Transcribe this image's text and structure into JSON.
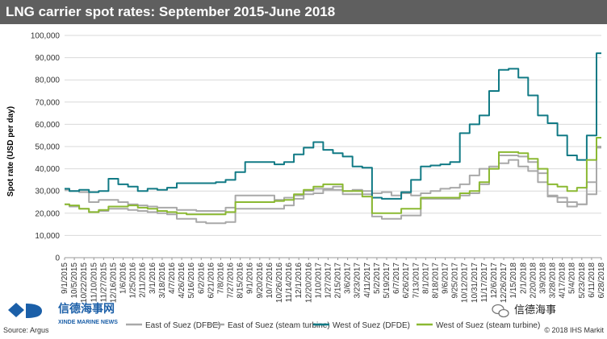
{
  "title": "LNG carrier spot rates: September 2015-June 2018",
  "colors": {
    "title_bg": "#5f5f5f",
    "east_dfde": "#a9a9a9",
    "east_steam": "#a9a9a9",
    "west_dfde": "#117a85",
    "west_steam": "#8bb932",
    "grid": "#d9d9d9"
  },
  "footer": {
    "source": "Source: Argus",
    "copyright": "© 2018 IHS Markit"
  },
  "watermark": {
    "chinese_name": "信德海事网",
    "english_name": "XINDE MARINE NEWS",
    "logo_text": "XD",
    "wechat_label": "信德海事",
    "wechat_icon": "wechat-icon"
  },
  "legend": {
    "east_dfde": "East of Suez (DFDE)",
    "east_steam": "East of Suez (steam turbine)",
    "west_dfde": "West of Suez (DFDE)",
    "west_steam": "West of Suez (steam turbine)"
  },
  "chart_data": {
    "type": "line",
    "title": "LNG carrier spot rates: September 2015-June 2018",
    "ylabel": "Spot rate (USD per day)",
    "xlabel": "",
    "ylim": [
      0,
      100000
    ],
    "yticks": [
      "0",
      "10,000",
      "20,000",
      "30,000",
      "40,000",
      "50,000",
      "60,000",
      "70,000",
      "80,000",
      "90,000",
      "100,000"
    ],
    "grid": "horizontal",
    "legend_position": "bottom",
    "categories": [
      "9/1/2015",
      "10/5/2015",
      "10/22/2015",
      "11/10/2015",
      "11/27/2015",
      "12/16/2015",
      "1/6/2016",
      "1/25/2016",
      "2/11/2016",
      "3/1/2016",
      "3/18/2016",
      "4/7/2016",
      "4/26/2016",
      "5/16/2016",
      "6/2/2016",
      "6/21/2016",
      "7/8/2016",
      "7/27/2016",
      "8/15/2016",
      "9/1/2016",
      "9/20/2016",
      "10/7/2016",
      "10/26/2016",
      "11/14/2016",
      "12/1/2016",
      "12/20/2016",
      "1/10/2017",
      "1/27/2017",
      "2/15/2017",
      "3/6/2017",
      "3/23/2017",
      "4/11/2017",
      "5/2/2017",
      "5/19/2017",
      "6/7/2017",
      "6/26/2017",
      "7/13/2017",
      "8/1/2017",
      "8/18/2017",
      "9/6/2017",
      "9/25/2017",
      "10/12/2017",
      "10/31/2017",
      "11/17/2017",
      "12/6/2017",
      "12/26/2017",
      "1/15/2018",
      "2/1/2018",
      "2/20/2018",
      "3/9/2018",
      "3/28/2018",
      "4/17/2018",
      "5/4/2018",
      "5/23/2018",
      "6/11/2018",
      "6/28/2018"
    ],
    "series": [
      {
        "name": "East of Suez (DFDE)",
        "color": "#a9a9a9",
        "values": [
          30500,
          30000,
          29500,
          25000,
          26000,
          26000,
          25000,
          24000,
          23500,
          23000,
          22500,
          22500,
          21500,
          21500,
          21000,
          21000,
          21000,
          22500,
          28000,
          28000,
          28000,
          28000,
          26000,
          27000,
          28000,
          30000,
          31000,
          31000,
          32000,
          30000,
          30500,
          30000,
          29000,
          29500,
          28000,
          29000,
          28000,
          29000,
          30000,
          31000,
          31500,
          33000,
          37000,
          40000,
          41000,
          42500,
          44000,
          41000,
          39000,
          34000,
          28000,
          27000,
          25000,
          24000,
          34000,
          49500
        ]
      },
      {
        "name": "East of Suez (steam turbine)",
        "color": "#a9a9a9",
        "values": [
          24000,
          23000,
          22000,
          20500,
          21000,
          22000,
          22000,
          21500,
          21000,
          20500,
          20000,
          19500,
          17500,
          17500,
          16000,
          15500,
          15500,
          16000,
          22000,
          22000,
          22000,
          22000,
          22000,
          23500,
          26500,
          28500,
          29000,
          30500,
          30500,
          28500,
          28500,
          28500,
          18500,
          17500,
          17500,
          19000,
          19000,
          26500,
          26500,
          26500,
          26500,
          28000,
          29000,
          33000,
          40000,
          46000,
          46000,
          45500,
          43000,
          38000,
          27500,
          25000,
          23000,
          24000,
          28500,
          50000
        ]
      },
      {
        "name": "West of Suez (DFDE)",
        "color": "#117a85",
        "values": [
          31000,
          30000,
          30500,
          29500,
          30000,
          35500,
          33000,
          32000,
          30000,
          31000,
          30500,
          31500,
          33500,
          33500,
          33500,
          33500,
          34000,
          35000,
          38500,
          43000,
          43000,
          43000,
          42000,
          43000,
          46500,
          49500,
          52000,
          48500,
          47000,
          45500,
          41000,
          40500,
          27000,
          26500,
          26500,
          29500,
          35000,
          41000,
          41500,
          42000,
          43000,
          56000,
          60000,
          64000,
          75000,
          84500,
          85000,
          81000,
          73000,
          64000,
          60500,
          55000,
          46000,
          44000,
          55000,
          92000
        ]
      },
      {
        "name": "West of Suez (steam turbine)",
        "color": "#8bb932",
        "values": [
          24000,
          23500,
          22000,
          20500,
          21500,
          23000,
          23000,
          23500,
          22500,
          22000,
          21000,
          20500,
          20000,
          19500,
          19500,
          19500,
          19500,
          20500,
          25000,
          25000,
          25000,
          25000,
          25500,
          26000,
          28500,
          30500,
          32000,
          33000,
          33000,
          30000,
          30000,
          27500,
          20000,
          20000,
          20000,
          22000,
          22000,
          27000,
          27000,
          27000,
          27000,
          29000,
          30000,
          34000,
          40000,
          47500,
          47500,
          47000,
          44500,
          40000,
          33000,
          32000,
          30000,
          31500,
          44000,
          54000
        ]
      }
    ]
  }
}
